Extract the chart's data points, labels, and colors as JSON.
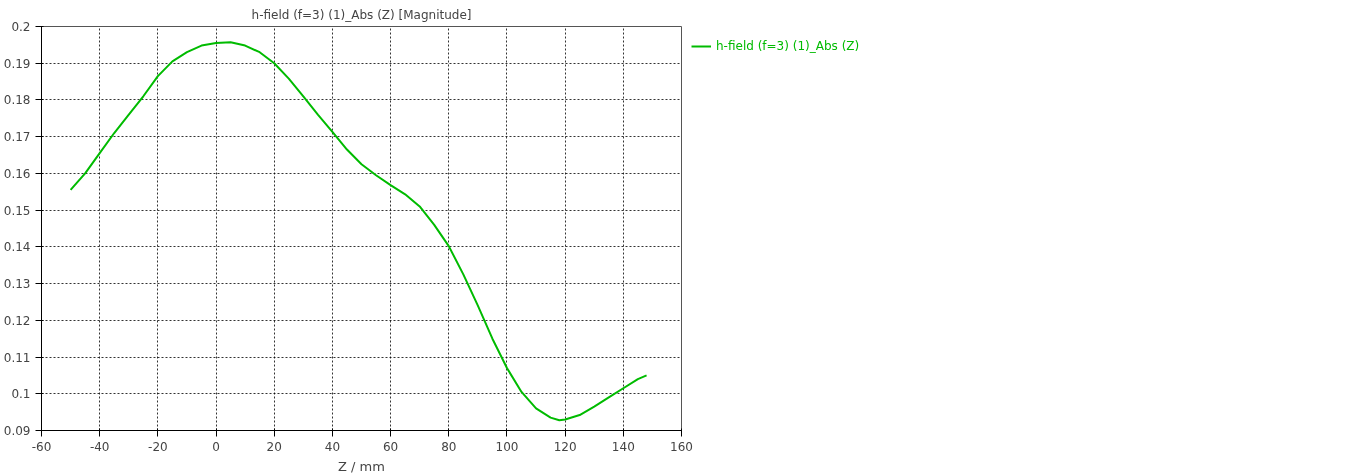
{
  "chart_data": {
    "type": "line",
    "title": "h-field (f=3) (1)_Abs (Z) [Magnitude]",
    "xlabel": "Z / mm",
    "x": [
      -50,
      -45,
      -40,
      -35,
      -30,
      -25,
      -20,
      -15,
      -10,
      -5,
      0,
      5,
      10,
      15,
      20,
      25,
      30,
      35,
      40,
      45,
      50,
      55,
      60,
      65,
      70,
      75,
      80,
      85,
      90,
      95,
      100,
      105,
      110,
      115,
      118,
      120,
      125,
      130,
      135,
      140,
      145,
      148
    ],
    "series": [
      {
        "name": "h-field (f=3) (1)_Abs (Z)",
        "color": "#00bb00",
        "values": [
          0.1555,
          0.16,
          0.1655,
          0.171,
          0.176,
          0.181,
          0.1865,
          0.1905,
          0.193,
          0.1948,
          0.1955,
          0.1957,
          0.1948,
          0.193,
          0.19,
          0.1858,
          0.181,
          0.176,
          0.1713,
          0.1665,
          0.1625,
          0.1595,
          0.1568,
          0.1543,
          0.151,
          0.146,
          0.1402,
          0.1325,
          0.124,
          0.115,
          0.107,
          0.1005,
          0.096,
          0.0935,
          0.0928,
          0.093,
          0.0942,
          0.0965,
          0.099,
          0.1015,
          0.104,
          0.105
        ]
      }
    ],
    "xlim": [
      -60,
      160
    ],
    "xticks": [
      -60,
      -40,
      -20,
      0,
      20,
      40,
      60,
      80,
      100,
      120,
      140,
      160
    ],
    "ylim": [
      0.09,
      0.2
    ],
    "yticks": [
      0.09,
      0.1,
      0.11,
      0.12,
      0.13,
      0.14,
      0.15,
      0.16,
      0.17,
      0.18,
      0.19,
      0.2
    ],
    "grid": true,
    "legend": "right",
    "line_style": "solid",
    "marker": "none"
  }
}
